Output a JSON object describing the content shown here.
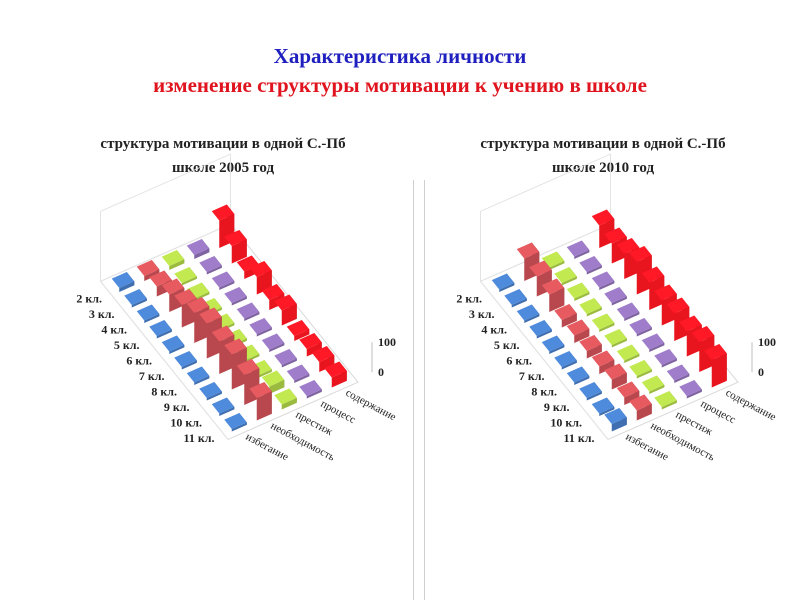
{
  "header": {
    "title_line1": "Характеристика личности",
    "title_line2": "изменение структуры мотивации к учению в школе"
  },
  "colors": {
    "title_line1": "#1f1fbf",
    "title_line2": "#e0141e",
    "избегание": "#3f6fb0",
    "необходимость": "#b8484d",
    "престиж": "#9bbb40",
    "процесс": "#8064a2",
    "содержание": "#e8141e"
  },
  "chart_data": [
    {
      "type": "bar",
      "title_line1": "структура мотивации в одной С.-Пб",
      "title_line2": "школе 2005 год",
      "categories": [
        "2 кл.",
        "3 кл.",
        "4 кл.",
        "5 кл.",
        "6 кл.",
        "7 кл.",
        "8 кл.",
        "9 кл.",
        "10 кл.",
        "11 кл."
      ],
      "z_axis_ticks": [
        "100",
        "0"
      ],
      "zlim": [
        0,
        100
      ],
      "series": [
        {
          "name": "избегание",
          "values": [
            8,
            5,
            5,
            5,
            5,
            5,
            5,
            5,
            5,
            5
          ]
        },
        {
          "name": "необходимость",
          "values": [
            10,
            20,
            35,
            45,
            60,
            70,
            65,
            70,
            60,
            45
          ]
        },
        {
          "name": "престиж",
          "values": [
            8,
            5,
            5,
            5,
            5,
            5,
            5,
            5,
            15,
            10
          ]
        },
        {
          "name": "процесс",
          "values": [
            8,
            5,
            5,
            5,
            5,
            5,
            5,
            5,
            5,
            5
          ]
        },
        {
          "name": "содержание",
          "values": [
            55,
            35,
            15,
            35,
            20,
            30,
            10,
            15,
            20,
            20
          ]
        }
      ]
    },
    {
      "type": "bar",
      "title_line1": "структура мотивации в одной С.-Пб",
      "title_line2": "школе 2010 год",
      "categories": [
        "2 кл.",
        "3 кл.",
        "4 кл.",
        "5 кл.",
        "6 кл.",
        "7 кл.",
        "8 кл.",
        "9 кл.",
        "10 кл.",
        "11 кл."
      ],
      "z_axis_ticks": [
        "100",
        "0"
      ],
      "zlim": [
        0,
        100
      ],
      "series": [
        {
          "name": "избегание",
          "values": [
            5,
            5,
            5,
            5,
            5,
            5,
            5,
            5,
            5,
            15
          ]
        },
        {
          "name": "необходимость",
          "values": [
            45,
            40,
            35,
            15,
            15,
            15,
            15,
            20,
            15,
            20
          ]
        },
        {
          "name": "престиж",
          "values": [
            5,
            5,
            5,
            5,
            5,
            5,
            5,
            5,
            5,
            5
          ]
        },
        {
          "name": "процесс",
          "values": [
            5,
            5,
            5,
            5,
            5,
            5,
            5,
            5,
            5,
            5
          ]
        },
        {
          "name": "содержание",
          "values": [
            45,
            40,
            50,
            65,
            55,
            50,
            55,
            50,
            60,
            55
          ]
        }
      ]
    }
  ]
}
